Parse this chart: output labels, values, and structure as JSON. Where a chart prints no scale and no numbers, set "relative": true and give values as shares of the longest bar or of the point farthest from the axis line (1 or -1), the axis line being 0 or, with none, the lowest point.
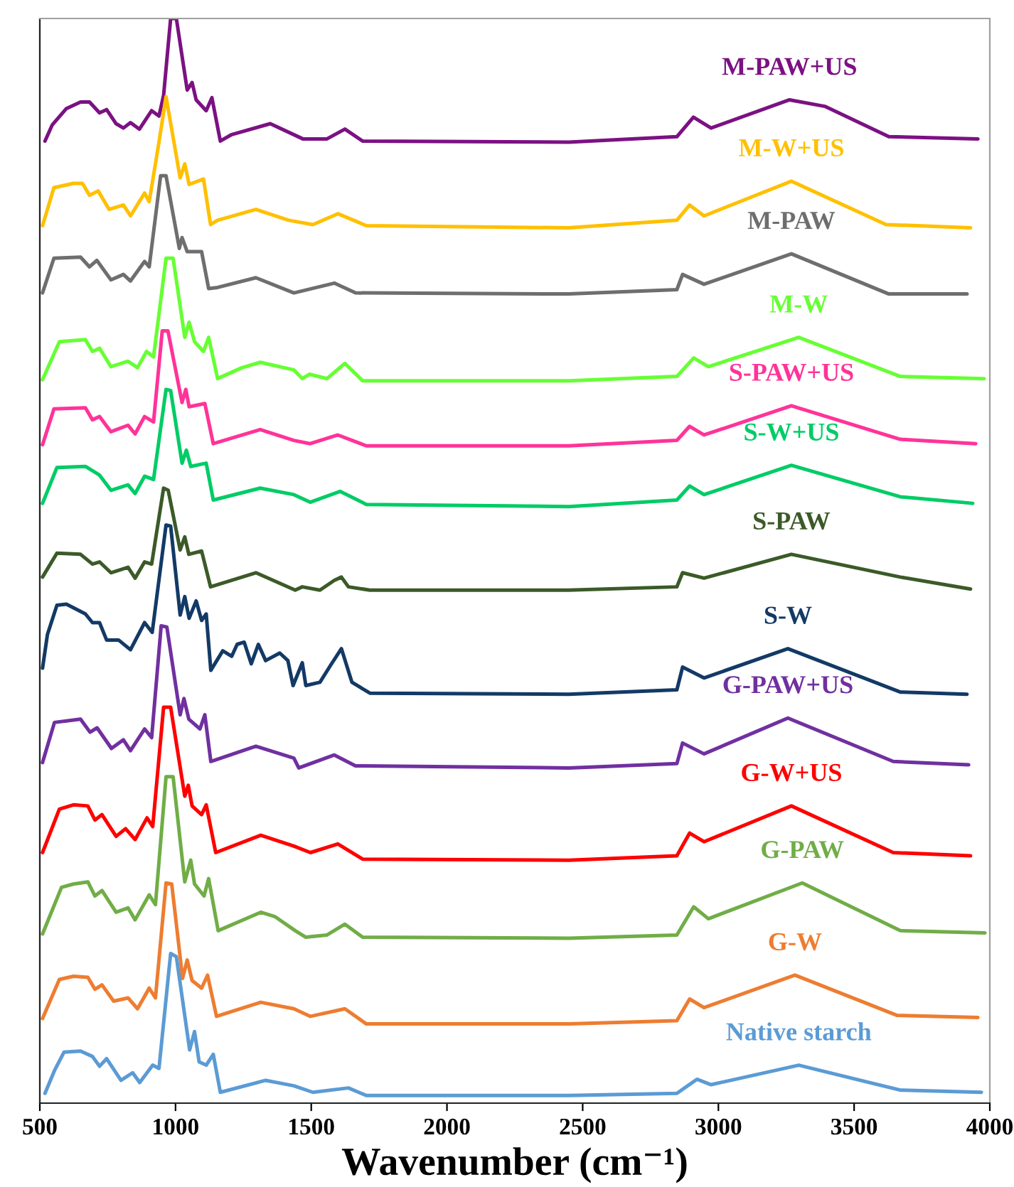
{
  "chart_data": {
    "type": "line",
    "relative": true,
    "xlabel": "Wavenumber (cm⁻¹)",
    "xlim": [
      500,
      4000
    ],
    "xticks": [
      500,
      1000,
      1500,
      2000,
      2500,
      3000,
      3500,
      4000
    ],
    "tick_labels": "x",
    "grid": false,
    "legend": false,
    "marker": "none",
    "line_style": "solid",
    "series": [
      {
        "name": "M-PAW+US",
        "color": "#7b1183",
        "x": [
          519,
          546,
          598,
          650,
          683,
          720,
          746,
          781,
          808,
          834,
          867,
          912,
          939,
          956,
          982,
          1003,
          1043,
          1061,
          1076,
          1113,
          1134,
          1165,
          1207,
          1349,
          1469,
          1558,
          1624,
          1689,
          2449,
          2847,
          2908,
          2973,
          3262,
          3392,
          3628,
          3956
        ],
        "values": [
          0.887,
          0.902,
          0.917,
          0.923,
          0.923,
          0.913,
          0.916,
          0.903,
          0.899,
          0.904,
          0.898,
          0.915,
          0.91,
          0.929,
          1,
          1,
          0.934,
          0.941,
          0.925,
          0.915,
          0.927,
          0.887,
          0.893,
          0.903,
          0.889,
          0.889,
          0.898,
          0.887,
          0.886,
          0.891,
          0.909,
          0.899,
          0.925,
          0.919,
          0.891,
          0.889
        ]
      },
      {
        "name": "M-W+US",
        "color": "#ffc000",
        "x": [
          510,
          552,
          624,
          657,
          683,
          715,
          755,
          808,
          834,
          886,
          903,
          939,
          965,
          1017,
          1034,
          1050,
          1103,
          1129,
          1155,
          1296,
          1417,
          1506,
          1598,
          1703,
          2449,
          2847,
          2894,
          2947,
          3269,
          3618,
          3929
        ],
        "values": [
          0.809,
          0.844,
          0.848,
          0.848,
          0.837,
          0.841,
          0.824,
          0.828,
          0.818,
          0.839,
          0.831,
          0.886,
          0.928,
          0.853,
          0.866,
          0.847,
          0.852,
          0.81,
          0.814,
          0.824,
          0.814,
          0.81,
          0.82,
          0.809,
          0.807,
          0.814,
          0.828,
          0.818,
          0.85,
          0.81,
          0.807
        ]
      },
      {
        "name": "M-PAW",
        "color": "#6e6e6e",
        "x": [
          510,
          552,
          650,
          683,
          710,
          762,
          808,
          834,
          886,
          903,
          945,
          965,
          1014,
          1024,
          1043,
          1096,
          1122,
          1155,
          1296,
          1436,
          1585,
          1663,
          2449,
          2847,
          2868,
          2947,
          3269,
          3628,
          3916
        ],
        "values": [
          0.747,
          0.779,
          0.78,
          0.771,
          0.777,
          0.759,
          0.764,
          0.758,
          0.776,
          0.771,
          0.855,
          0.855,
          0.788,
          0.798,
          0.785,
          0.785,
          0.751,
          0.752,
          0.761,
          0.747,
          0.756,
          0.747,
          0.746,
          0.75,
          0.764,
          0.755,
          0.783,
          0.746,
          0.746
        ]
      },
      {
        "name": "M-W",
        "color": "#66ff33",
        "x": [
          510,
          572,
          668,
          694,
          720,
          762,
          825,
          860,
          893,
          919,
          965,
          991,
          1034,
          1050,
          1070,
          1103,
          1122,
          1155,
          1244,
          1312,
          1436,
          1467,
          1493,
          1558,
          1624,
          1689,
          2449,
          2847,
          2909,
          2963,
          3296,
          3670,
          3979
        ],
        "values": [
          0.667,
          0.702,
          0.704,
          0.693,
          0.696,
          0.679,
          0.684,
          0.678,
          0.693,
          0.688,
          0.779,
          0.779,
          0.706,
          0.72,
          0.702,
          0.693,
          0.706,
          0.668,
          0.678,
          0.683,
          0.676,
          0.668,
          0.672,
          0.668,
          0.682,
          0.666,
          0.666,
          0.67,
          0.687,
          0.679,
          0.706,
          0.67,
          0.668
        ]
      },
      {
        "name": "S-PAW+US",
        "color": "#ff3399",
        "x": [
          510,
          552,
          668,
          694,
          720,
          762,
          825,
          851,
          886,
          919,
          951,
          972,
          1024,
          1038,
          1050,
          1108,
          1139,
          1312,
          1436,
          1496,
          1598,
          1703,
          2449,
          2847,
          2894,
          2947,
          3269,
          3670,
          3948
        ],
        "values": [
          0.607,
          0.64,
          0.641,
          0.63,
          0.633,
          0.619,
          0.625,
          0.617,
          0.633,
          0.628,
          0.712,
          0.712,
          0.646,
          0.658,
          0.642,
          0.645,
          0.608,
          0.621,
          0.611,
          0.608,
          0.616,
          0.606,
          0.606,
          0.611,
          0.624,
          0.616,
          0.643,
          0.612,
          0.608
        ]
      },
      {
        "name": "S-W+US",
        "color": "#00cc66",
        "x": [
          510,
          563,
          668,
          720,
          762,
          825,
          851,
          886,
          919,
          965,
          982,
          1024,
          1040,
          1056,
          1113,
          1139,
          1312,
          1436,
          1496,
          1606,
          1703,
          2449,
          2847,
          2894,
          2947,
          3269,
          3670,
          3937
        ],
        "values": [
          0.553,
          0.586,
          0.587,
          0.579,
          0.565,
          0.57,
          0.562,
          0.578,
          0.575,
          0.658,
          0.657,
          0.59,
          0.602,
          0.587,
          0.59,
          0.556,
          0.567,
          0.561,
          0.554,
          0.564,
          0.552,
          0.55,
          0.556,
          0.569,
          0.561,
          0.588,
          0.559,
          0.553
        ]
      },
      {
        "name": "S-PAW",
        "color": "#3b5a28",
        "x": [
          510,
          563,
          650,
          694,
          720,
          762,
          825,
          851,
          886,
          912,
          956,
          973,
          1017,
          1034,
          1049,
          1096,
          1129,
          1296,
          1441,
          1467,
          1532,
          1585,
          1611,
          1637,
          1716,
          2449,
          2847,
          2868,
          2947,
          3269,
          3670,
          3929
        ],
        "values": [
          0.485,
          0.507,
          0.506,
          0.497,
          0.499,
          0.489,
          0.494,
          0.484,
          0.499,
          0.497,
          0.567,
          0.565,
          0.51,
          0.522,
          0.506,
          0.509,
          0.476,
          0.489,
          0.473,
          0.476,
          0.473,
          0.482,
          0.485,
          0.476,
          0.473,
          0.473,
          0.476,
          0.489,
          0.484,
          0.506,
          0.485,
          0.474
        ]
      },
      {
        "name": "S-W",
        "color": "#133a66",
        "x": [
          510,
          528,
          563,
          598,
          668,
          694,
          720,
          746,
          790,
          834,
          886,
          914,
          965,
          982,
          1017,
          1034,
          1050,
          1076,
          1096,
          1113,
          1130,
          1174,
          1207,
          1227,
          1253,
          1279,
          1305,
          1332,
          1384,
          1414,
          1433,
          1467,
          1480,
          1532,
          1572,
          1611,
          1650,
          1716,
          2449,
          2847,
          2868,
          2947,
          3256,
          3670,
          3916
        ],
        "values": [
          0.401,
          0.432,
          0.459,
          0.46,
          0.451,
          0.443,
          0.443,
          0.427,
          0.427,
          0.418,
          0.443,
          0.434,
          0.533,
          0.532,
          0.45,
          0.467,
          0.447,
          0.463,
          0.445,
          0.451,
          0.399,
          0.417,
          0.412,
          0.423,
          0.425,
          0.405,
          0.423,
          0.408,
          0.415,
          0.408,
          0.385,
          0.406,
          0.385,
          0.388,
          0.404,
          0.419,
          0.388,
          0.378,
          0.377,
          0.381,
          0.402,
          0.392,
          0.419,
          0.379,
          0.377
        ]
      },
      {
        "name": "G-PAW+US",
        "color": "#7030a0",
        "x": [
          510,
          554,
          650,
          685,
          711,
          764,
          808,
          834,
          886,
          912,
          947,
          968,
          1017,
          1031,
          1049,
          1090,
          1108,
          1130,
          1296,
          1436,
          1454,
          1585,
          1663,
          2449,
          2847,
          2868,
          2947,
          3256,
          3644,
          3922
        ],
        "values": [
          0.314,
          0.351,
          0.354,
          0.342,
          0.346,
          0.327,
          0.335,
          0.325,
          0.345,
          0.337,
          0.44,
          0.439,
          0.358,
          0.373,
          0.354,
          0.345,
          0.358,
          0.315,
          0.329,
          0.318,
          0.309,
          0.321,
          0.311,
          0.309,
          0.313,
          0.332,
          0.322,
          0.355,
          0.315,
          0.312
        ]
      },
      {
        "name": "G-W+US",
        "color": "#ff0000",
        "x": [
          510,
          572,
          624,
          677,
          703,
          729,
          781,
          816,
          851,
          895,
          916,
          956,
          982,
          1034,
          1047,
          1061,
          1096,
          1113,
          1148,
          1314,
          1436,
          1497,
          1598,
          1689,
          2449,
          2847,
          2894,
          2947,
          3269,
          3644,
          3929
        ],
        "values": [
          0.231,
          0.271,
          0.275,
          0.274,
          0.261,
          0.266,
          0.246,
          0.253,
          0.243,
          0.263,
          0.255,
          0.365,
          0.365,
          0.283,
          0.293,
          0.274,
          0.266,
          0.275,
          0.231,
          0.247,
          0.237,
          0.231,
          0.239,
          0.225,
          0.224,
          0.228,
          0.249,
          0.241,
          0.274,
          0.231,
          0.228
        ]
      },
      {
        "name": "G-PAW",
        "color": "#70ad47",
        "x": [
          510,
          580,
          624,
          677,
          703,
          729,
          781,
          825,
          851,
          903,
          926,
          965,
          991,
          1034,
          1056,
          1070,
          1105,
          1122,
          1157,
          1314,
          1366,
          1441,
          1480,
          1558,
          1624,
          1689,
          2449,
          2847,
          2909,
          2963,
          3309,
          3670,
          3982
        ],
        "values": [
          0.156,
          0.199,
          0.202,
          0.204,
          0.191,
          0.196,
          0.176,
          0.18,
          0.169,
          0.192,
          0.183,
          0.301,
          0.301,
          0.204,
          0.224,
          0.202,
          0.191,
          0.207,
          0.159,
          0.176,
          0.172,
          0.159,
          0.153,
          0.155,
          0.165,
          0.153,
          0.152,
          0.155,
          0.181,
          0.17,
          0.203,
          0.159,
          0.157
        ]
      },
      {
        "name": "G-W",
        "color": "#ed7d31",
        "x": [
          510,
          572,
          624,
          677,
          703,
          729,
          772,
          825,
          860,
          903,
          926,
          965,
          986,
          1026,
          1043,
          1061,
          1096,
          1118,
          1151,
          1314,
          1436,
          1497,
          1624,
          1703,
          2449,
          2847,
          2894,
          2947,
          3282,
          3657,
          3956
        ],
        "values": [
          0.078,
          0.114,
          0.117,
          0.116,
          0.105,
          0.109,
          0.094,
          0.097,
          0.087,
          0.106,
          0.097,
          0.203,
          0.202,
          0.115,
          0.132,
          0.113,
          0.106,
          0.118,
          0.08,
          0.093,
          0.087,
          0.08,
          0.087,
          0.073,
          0.073,
          0.076,
          0.096,
          0.088,
          0.118,
          0.081,
          0.079
        ]
      },
      {
        "name": "Native starch",
        "color": "#5b9bd5",
        "x": [
          519,
          554,
          589,
          650,
          694,
          720,
          746,
          799,
          842,
          868,
          916,
          939,
          982,
          1003,
          1052,
          1070,
          1087,
          1113,
          1139,
          1165,
          1332,
          1436,
          1506,
          1637,
          1703,
          2449,
          2847,
          2921,
          2973,
          3296,
          3670,
          3969
        ],
        "values": [
          0.009,
          0.03,
          0.047,
          0.048,
          0.043,
          0.034,
          0.041,
          0.021,
          0.028,
          0.019,
          0.035,
          0.032,
          0.138,
          0.135,
          0.049,
          0.066,
          0.038,
          0.035,
          0.045,
          0.01,
          0.021,
          0.016,
          0.01,
          0.014,
          0.007,
          0.007,
          0.009,
          0.022,
          0.017,
          0.035,
          0.012,
          0.01
        ]
      }
    ]
  }
}
